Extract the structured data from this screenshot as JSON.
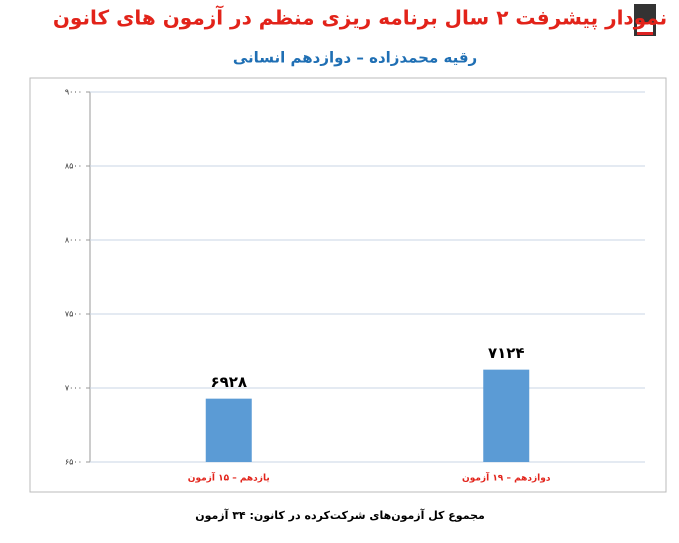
{
  "chart_data": {
    "type": "bar",
    "title": "نمودار پیشرفت ۲ سال برنامه ریزی منظم در آزمون های کانون",
    "subtitle": "رقیه محمدزاده – دوازدهم انسانی",
    "categories": [
      "یازدهم – ۱۵ آزمون",
      "دوازدهم – ۱۹ آزمون"
    ],
    "values": [
      6928,
      7124
    ],
    "value_labels": [
      "۶۹۲۸",
      "۷۱۲۴"
    ],
    "color": "#5b9bd5",
    "ylim": [
      6500,
      9000
    ],
    "yticks": [
      {
        "value": 6500,
        "label": "۶۵۰۰"
      },
      {
        "value": 7000,
        "label": "۷۰۰۰"
      },
      {
        "value": 7500,
        "label": "۷۵۰۰"
      },
      {
        "value": 8000,
        "label": "۸۰۰۰"
      },
      {
        "value": 8500,
        "label": "۸۵۰۰"
      },
      {
        "value": 9000,
        "label": "۹۰۰۰"
      }
    ],
    "grid": true,
    "footnote": "مجموع کل آزمون‌های شرکت‌کرده در کانون: ۳۴ آزمون"
  }
}
